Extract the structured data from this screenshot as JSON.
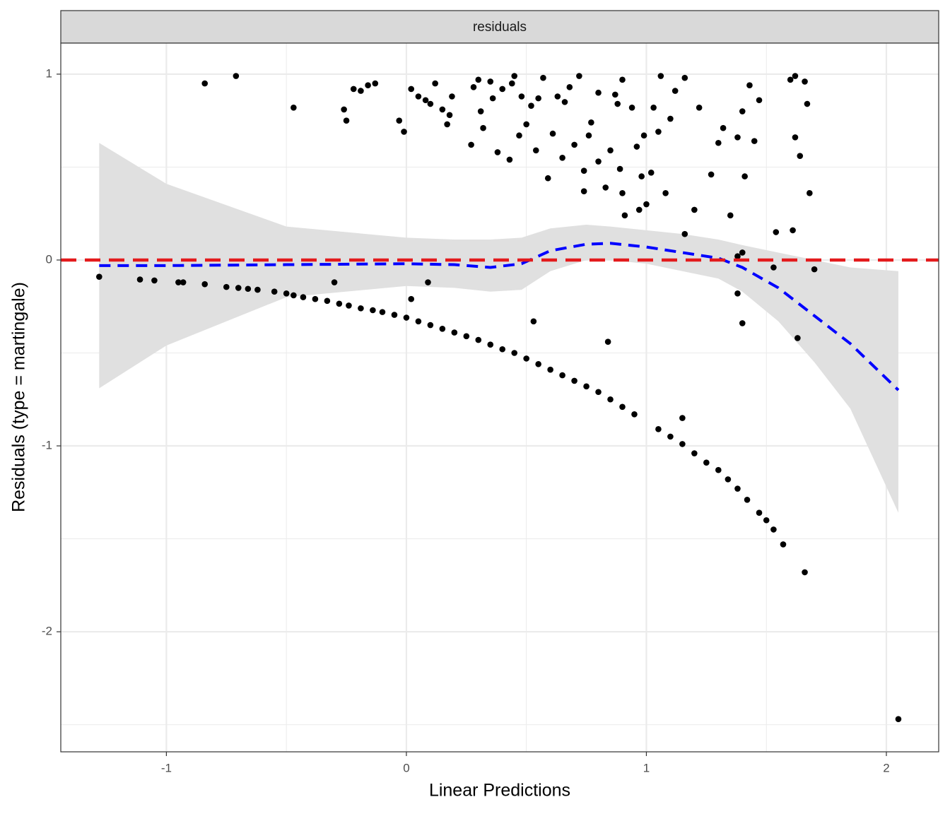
{
  "chart_data": {
    "type": "scatter",
    "strip": "residuals",
    "x_label": "Linear Predictions",
    "y_label": "Residuals (type = martingale)",
    "xlim": [
      -1.44,
      2.218
    ],
    "ylim": [
      -2.646,
      1.167
    ],
    "xticks": [
      -1,
      0,
      1,
      2
    ],
    "yticks": [
      -2,
      -1,
      0,
      1
    ],
    "x_minor_ticks": [
      -0.5,
      0.5,
      1.5
    ],
    "y_minor_ticks": [
      -2.5,
      -1.5,
      -0.5,
      0.5
    ],
    "grid": true,
    "points": {
      "color": "#000000",
      "x": [
        -1.28,
        -1.11,
        -1.05,
        -0.95,
        -0.93,
        -0.84,
        -0.75,
        -0.7,
        -0.66,
        -0.62,
        -0.55,
        -0.5,
        -0.47,
        -0.43,
        -0.38,
        -0.33,
        -0.28,
        -0.24,
        -0.19,
        -0.14,
        -0.1,
        -0.05,
        0,
        0.05,
        0.1,
        0.15,
        0.2,
        0.25,
        0.3,
        0.35,
        0.4,
        0.45,
        0.5,
        0.55,
        0.6,
        0.65,
        0.7,
        0.75,
        0.8,
        0.85,
        0.9,
        0.95,
        1.05,
        1.1,
        1.15,
        1.2,
        1.25,
        1.3,
        1.34,
        1.38,
        1.42,
        1.47,
        1.5,
        1.53,
        1.57,
        1.66,
        2.05,
        -0.3,
        0.02,
        0.09,
        0.53,
        0.84,
        1.15,
        1.38,
        1.4,
        1.63,
        1.7,
        1.53,
        1.4,
        1.38,
        1.16,
        1.54,
        1.61,
        -0.84,
        -0.71,
        -0.47,
        -0.26,
        -0.25,
        -0.22,
        -0.19,
        -0.16,
        -0.13,
        -0.03,
        -0.01,
        0.02,
        0.05,
        0.08,
        0.1,
        0.12,
        0.15,
        0.17,
        0.19,
        0.18,
        0.27,
        0.28,
        0.3,
        0.31,
        0.32,
        0.35,
        0.36,
        0.38,
        0.4,
        0.43,
        0.44,
        0.45,
        0.47,
        0.48,
        0.5,
        0.52,
        0.54,
        0.55,
        0.57,
        0.59,
        0.61,
        0.63,
        0.65,
        0.66,
        0.68,
        0.7,
        0.72,
        0.74,
        0.74,
        0.76,
        0.77,
        0.8,
        0.8,
        0.83,
        0.85,
        0.87,
        0.88,
        0.89,
        0.9,
        0.9,
        0.91,
        0.94,
        0.96,
        0.97,
        0.98,
        0.99,
        1.0,
        1.02,
        1.03,
        1.05,
        1.06,
        1.08,
        1.1,
        1.12,
        1.16,
        1.2,
        1.22,
        1.27,
        1.3,
        1.32,
        1.35,
        1.38,
        1.4,
        1.41,
        1.43,
        1.45,
        1.47,
        1.6,
        1.62,
        1.62,
        1.64,
        1.66,
        1.67,
        1.68
      ],
      "y": [
        -0.09,
        -0.105,
        -0.11,
        -0.12,
        -0.12,
        -0.13,
        -0.145,
        -0.15,
        -0.155,
        -0.16,
        -0.17,
        -0.18,
        -0.19,
        -0.2,
        -0.21,
        -0.22,
        -0.235,
        -0.245,
        -0.26,
        -0.27,
        -0.28,
        -0.295,
        -0.31,
        -0.33,
        -0.35,
        -0.37,
        -0.39,
        -0.41,
        -0.43,
        -0.455,
        -0.48,
        -0.5,
        -0.53,
        -0.56,
        -0.59,
        -0.62,
        -0.65,
        -0.68,
        -0.71,
        -0.75,
        -0.79,
        -0.83,
        -0.91,
        -0.95,
        -0.99,
        -1.04,
        -1.09,
        -1.13,
        -1.18,
        -1.23,
        -1.29,
        -1.36,
        -1.4,
        -1.45,
        -1.53,
        -1.68,
        -2.47,
        -0.12,
        -0.21,
        -0.12,
        -0.33,
        -0.44,
        -0.85,
        -0.18,
        -0.34,
        -0.42,
        -0.05,
        -0.04,
        0.04,
        0.02,
        0.14,
        0.15,
        0.16,
        0.95,
        0.99,
        0.82,
        0.81,
        0.75,
        0.92,
        0.91,
        0.94,
        0.95,
        0.75,
        0.69,
        0.92,
        0.88,
        0.86,
        0.84,
        0.95,
        0.81,
        0.73,
        0.88,
        0.78,
        0.62,
        0.93,
        0.97,
        0.8,
        0.71,
        0.96,
        0.87,
        0.58,
        0.92,
        0.54,
        0.95,
        0.99,
        0.67,
        0.88,
        0.73,
        0.83,
        0.59,
        0.87,
        0.98,
        0.44,
        0.68,
        0.88,
        0.55,
        0.85,
        0.93,
        0.62,
        0.99,
        0.48,
        0.37,
        0.67,
        0.74,
        0.53,
        0.9,
        0.39,
        0.59,
        0.89,
        0.84,
        0.49,
        0.97,
        0.36,
        0.24,
        0.82,
        0.61,
        0.27,
        0.45,
        0.67,
        0.3,
        0.47,
        0.82,
        0.69,
        0.99,
        0.36,
        0.76,
        0.91,
        0.98,
        0.27,
        0.82,
        0.46,
        0.63,
        0.71,
        0.24,
        0.66,
        0.8,
        0.45,
        0.94,
        0.64,
        0.86,
        0.97,
        0.99,
        0.66,
        0.56,
        0.96,
        0.84,
        0.36
      ]
    },
    "smooth": {
      "color": "#0000ff",
      "fill": "#e0e0e0",
      "x": [
        -1.28,
        -1.0,
        -0.5,
        0,
        0.2,
        0.35,
        0.48,
        0.6,
        0.75,
        0.85,
        1.0,
        1.15,
        1.3,
        1.4,
        1.55,
        1.7,
        1.85,
        2.05
      ],
      "y": [
        -0.03,
        -0.03,
        -0.025,
        -0.02,
        -0.025,
        -0.04,
        -0.02,
        0.05,
        0.085,
        0.09,
        0.07,
        0.04,
        0.01,
        -0.04,
        -0.15,
        -0.3,
        -0.45,
        -0.7
      ],
      "lower": [
        -0.69,
        -0.46,
        -0.2,
        -0.14,
        -0.15,
        -0.17,
        -0.16,
        -0.06,
        0.0,
        0.0,
        -0.02,
        -0.06,
        -0.1,
        -0.17,
        -0.33,
        -0.55,
        -0.8,
        -1.36
      ],
      "upper": [
        0.63,
        0.41,
        0.18,
        0.12,
        0.11,
        0.11,
        0.12,
        0.17,
        0.19,
        0.18,
        0.16,
        0.14,
        0.11,
        0.08,
        0.04,
        0.0,
        -0.04,
        -0.06
      ]
    },
    "hline": {
      "y": 0,
      "color": "#e31a1c"
    }
  }
}
